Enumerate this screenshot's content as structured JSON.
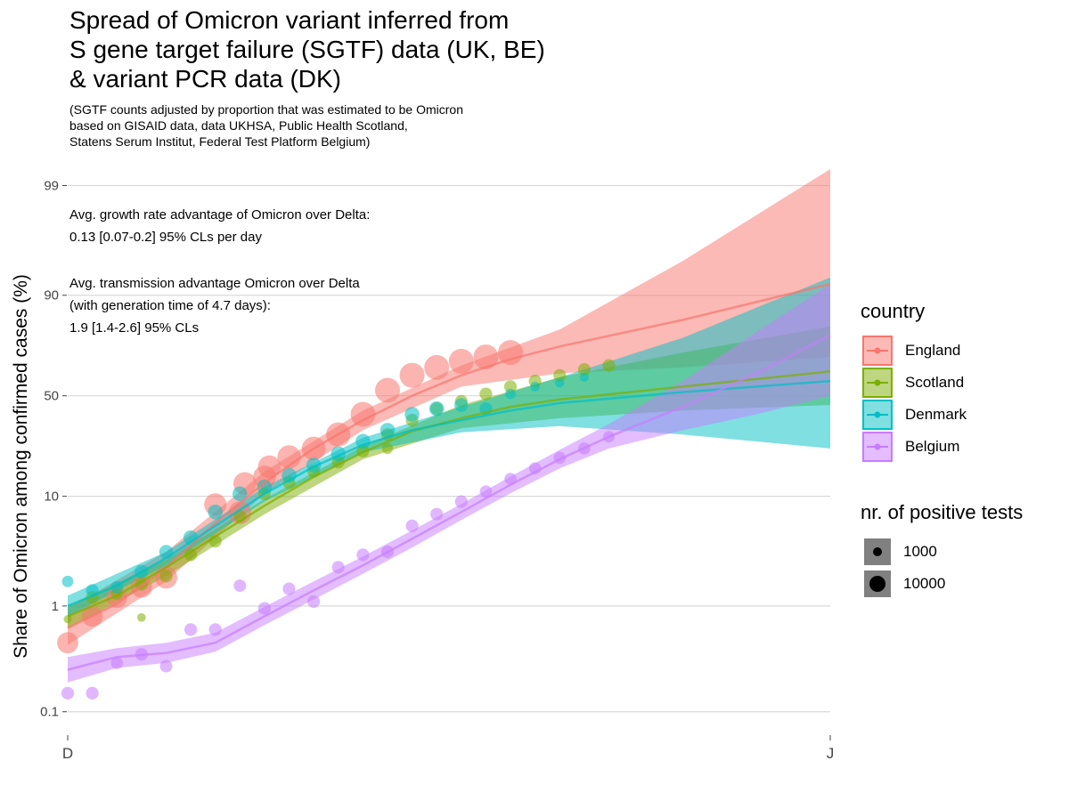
{
  "title_lines": [
    "Spread of Omicron variant inferred from",
    "S gene target failure (SGTF) data (UK, BE)",
    "& variant PCR data (DK)"
  ],
  "subtitle_lines": [
    "(SGTF counts adjusted by proportion that was estimated to be Omicron",
    "based on GISAID data, data UKHSA, Public Health Scotland,",
    "Statens Serum Institut, Federal Test Platform Belgium)"
  ],
  "annotations": {
    "growth_lines": [
      "Avg. growth rate advantage of Omicron over Delta:",
      "0.13 [0.07-0.2] 95% CLs per day"
    ],
    "transmission_lines": [
      "Avg. transmission advantage Omicron over Delta",
      "(with generation time of 4.7 days):",
      "1.9 [1.4-2.6] 95% CLs"
    ]
  },
  "legend": {
    "country_title": "country",
    "size_title": "nr. of positive tests",
    "size_items": [
      {
        "label": "1000",
        "value": 1000
      },
      {
        "label": "10000",
        "value": 10000
      }
    ]
  },
  "chart_data": {
    "type": "scatter",
    "description_type": "logit-scale scatter with fitted lines and confidence bands",
    "ylabel": "Share of Omicron among confirmed cases (%)",
    "xlabel": "",
    "y_scale": "logit",
    "y_ticks": [
      0.1,
      1,
      10,
      50,
      90,
      99
    ],
    "y_tick_labels": [
      "0.1",
      "1",
      "10",
      "50",
      "90",
      "99"
    ],
    "x_ticks": [
      "D",
      "J"
    ],
    "x_tick_days": [
      0,
      31
    ],
    "ylim": [
      0.06,
      99.3
    ],
    "xlim": [
      0,
      31
    ],
    "grid": true,
    "legend_position": "right",
    "series": [
      {
        "name": "England",
        "color": "#F8766D",
        "points": [
          [
            0,
            0.45,
            14000
          ],
          [
            1,
            0.8,
            13000
          ],
          [
            2,
            1.2,
            13000
          ],
          [
            3,
            1.5,
            14000
          ],
          [
            4,
            1.85,
            16000
          ],
          [
            6,
            8.5,
            16000
          ],
          [
            7,
            7.2,
            17000
          ],
          [
            7.2,
            12.8,
            17000
          ],
          [
            8,
            14.5,
            17000
          ],
          [
            8.2,
            17.5,
            17000
          ],
          [
            9,
            20.8,
            18000
          ],
          [
            10,
            24,
            19000
          ],
          [
            11,
            30,
            20000
          ],
          [
            12,
            40,
            21000
          ],
          [
            13,
            53,
            22000
          ],
          [
            14,
            61,
            22000
          ],
          [
            15,
            65,
            23000
          ],
          [
            16,
            68,
            24000
          ],
          [
            17,
            70,
            25000
          ],
          [
            18,
            72,
            25000
          ]
        ],
        "fit": [
          [
            0,
            0.62
          ],
          [
            2,
            1.05
          ],
          [
            4,
            2.3
          ],
          [
            6,
            5.8
          ],
          [
            8,
            13
          ],
          [
            10,
            24
          ],
          [
            12,
            37
          ],
          [
            14,
            50
          ],
          [
            16,
            61
          ],
          [
            18,
            69
          ],
          [
            20,
            74.6
          ],
          [
            25,
            84
          ],
          [
            31,
            92
          ]
        ],
        "ci_upper": [
          [
            0,
            0.95
          ],
          [
            4,
            3.2
          ],
          [
            8,
            16
          ],
          [
            12,
            42
          ],
          [
            16,
            66
          ],
          [
            20,
            81
          ],
          [
            25,
            95
          ],
          [
            31,
            99.3
          ]
        ],
        "ci_lower": [
          [
            0,
            0.43
          ],
          [
            4,
            1.7
          ],
          [
            8,
            10.5
          ],
          [
            12,
            32
          ],
          [
            16,
            55
          ],
          [
            20,
            62
          ],
          [
            25,
            65
          ],
          [
            31,
            70
          ]
        ]
      },
      {
        "name": "Scotland",
        "color": "#7CAE00",
        "points": [
          [
            0,
            0.75,
            400
          ],
          [
            1,
            1.2,
            3000
          ],
          [
            2,
            1.3,
            2000
          ],
          [
            3,
            1.6,
            3000
          ],
          [
            3,
            0.78,
            600
          ],
          [
            4,
            1.9,
            3000
          ],
          [
            5,
            3.0,
            3000
          ],
          [
            6,
            4.0,
            3000
          ],
          [
            7,
            6.7,
            3000
          ],
          [
            8,
            10.5,
            3000
          ],
          [
            9,
            13,
            3000
          ],
          [
            10,
            16,
            3000
          ],
          [
            11,
            19,
            3000
          ],
          [
            12,
            23,
            3000
          ],
          [
            13,
            30,
            3000
          ],
          [
            14,
            37,
            3000
          ],
          [
            15,
            43,
            3000
          ],
          [
            16,
            47,
            3000
          ],
          [
            17,
            51,
            3000
          ],
          [
            18,
            55,
            3000
          ],
          [
            19,
            58,
            3000
          ],
          [
            20,
            61,
            3000
          ],
          [
            21,
            64,
            3000
          ],
          [
            22,
            66,
            3000
          ],
          [
            13,
            24,
            1800
          ]
        ],
        "fit": [
          [
            0,
            0.8
          ],
          [
            2,
            1.25
          ],
          [
            4,
            2.3
          ],
          [
            6,
            4.4
          ],
          [
            8,
            8.3
          ],
          [
            10,
            14.5
          ],
          [
            12,
            22.5
          ],
          [
            14,
            31.5
          ],
          [
            16,
            38
          ],
          [
            18,
            44
          ],
          [
            20,
            48
          ],
          [
            25,
            55
          ],
          [
            31,
            63
          ]
        ],
        "ci_upper": [
          [
            0,
            1.0
          ],
          [
            4,
            2.7
          ],
          [
            8,
            9.5
          ],
          [
            12,
            25
          ],
          [
            16,
            45
          ],
          [
            20,
            60
          ],
          [
            25,
            72
          ],
          [
            31,
            82
          ]
        ],
        "ci_lower": [
          [
            0,
            0.62
          ],
          [
            4,
            1.9
          ],
          [
            8,
            7.0
          ],
          [
            12,
            20
          ],
          [
            16,
            33
          ],
          [
            20,
            38
          ],
          [
            25,
            42
          ],
          [
            31,
            45
          ]
        ]
      },
      {
        "name": "Denmark",
        "color": "#00BFC4",
        "points": [
          [
            0,
            1.7,
            2000
          ],
          [
            1,
            1.4,
            3000
          ],
          [
            2,
            1.5,
            3000
          ],
          [
            3,
            2.1,
            4000
          ],
          [
            4,
            3.2,
            4000
          ],
          [
            5,
            4.3,
            5000
          ],
          [
            6,
            7.3,
            5000
          ],
          [
            7,
            10.5,
            5000
          ],
          [
            8,
            12,
            5000
          ],
          [
            9,
            15,
            5000
          ],
          [
            10,
            18,
            5000
          ],
          [
            11,
            22,
            5000
          ],
          [
            12,
            27,
            5000
          ],
          [
            13,
            32,
            5000
          ],
          [
            14,
            40,
            5000
          ],
          [
            15,
            43,
            5000
          ],
          [
            16,
            45,
            4000
          ],
          [
            17,
            43,
            3000
          ],
          [
            18,
            51,
            1500
          ],
          [
            19,
            55,
            1000
          ],
          [
            20,
            57,
            800
          ],
          [
            21,
            60,
            800
          ]
        ],
        "fit": [
          [
            0,
            1.0
          ],
          [
            2,
            1.55
          ],
          [
            4,
            2.8
          ],
          [
            6,
            5.5
          ],
          [
            8,
            10.5
          ],
          [
            10,
            17.5
          ],
          [
            12,
            25.5
          ],
          [
            14,
            32
          ],
          [
            16,
            37
          ],
          [
            18,
            42
          ],
          [
            20,
            46
          ],
          [
            25,
            52
          ],
          [
            31,
            58
          ]
        ],
        "ci_upper": [
          [
            0,
            1.25
          ],
          [
            4,
            3.2
          ],
          [
            8,
            12
          ],
          [
            12,
            28.5
          ],
          [
            16,
            44
          ],
          [
            20,
            60
          ],
          [
            25,
            78
          ],
          [
            31,
            93
          ]
        ],
        "ci_lower": [
          [
            0,
            0.8
          ],
          [
            4,
            2.4
          ],
          [
            8,
            9.0
          ],
          [
            12,
            22.5
          ],
          [
            16,
            31
          ],
          [
            20,
            34
          ],
          [
            25,
            30
          ],
          [
            31,
            24
          ]
        ]
      },
      {
        "name": "Belgium",
        "color": "#C77CFF",
        "points": [
          [
            0,
            0.15,
            3000
          ],
          [
            1,
            0.15,
            3000
          ],
          [
            2,
            0.29,
            2500
          ],
          [
            3,
            0.35,
            3000
          ],
          [
            4,
            0.27,
            2800
          ],
          [
            5,
            0.6,
            3000
          ],
          [
            6,
            0.6,
            3000
          ],
          [
            7,
            1.55,
            2800
          ],
          [
            8,
            0.95,
            3000
          ],
          [
            9,
            1.45,
            3000
          ],
          [
            10,
            1.1,
            3000
          ],
          [
            11,
            2.3,
            3000
          ],
          [
            12,
            3.0,
            3000
          ],
          [
            13,
            3.2,
            3000
          ],
          [
            14,
            5.5,
            3000
          ],
          [
            15,
            7.0,
            3000
          ],
          [
            16,
            9.0,
            3000
          ],
          [
            17,
            11,
            2500
          ],
          [
            18,
            14,
            2500
          ],
          [
            19,
            17,
            2500
          ],
          [
            20,
            20.5,
            2500
          ],
          [
            21,
            24,
            2500
          ],
          [
            22,
            29,
            2000
          ]
        ],
        "fit": [
          [
            0,
            0.25
          ],
          [
            2,
            0.33
          ],
          [
            4,
            0.36
          ],
          [
            6,
            0.45
          ],
          [
            8,
            0.8
          ],
          [
            10,
            1.4
          ],
          [
            12,
            2.4
          ],
          [
            14,
            4.2
          ],
          [
            16,
            7.3
          ],
          [
            18,
            12.5
          ],
          [
            20,
            20
          ],
          [
            22,
            29
          ],
          [
            25,
            44
          ],
          [
            28,
            62
          ],
          [
            31,
            79
          ]
        ],
        "ci_upper": [
          [
            0,
            0.33
          ],
          [
            2,
            0.4
          ],
          [
            4,
            0.45
          ],
          [
            6,
            0.56
          ],
          [
            8,
            0.98
          ],
          [
            10,
            1.7
          ],
          [
            12,
            2.9
          ],
          [
            14,
            5.0
          ],
          [
            16,
            8.6
          ],
          [
            18,
            14.6
          ],
          [
            20,
            23.5
          ],
          [
            22,
            35
          ],
          [
            25,
            58
          ],
          [
            28,
            80
          ],
          [
            31,
            92
          ]
        ],
        "ci_lower": [
          [
            0,
            0.19
          ],
          [
            2,
            0.26
          ],
          [
            4,
            0.29
          ],
          [
            6,
            0.37
          ],
          [
            8,
            0.66
          ],
          [
            10,
            1.15
          ],
          [
            12,
            2.0
          ],
          [
            14,
            3.5
          ],
          [
            16,
            6.2
          ],
          [
            18,
            10.6
          ],
          [
            20,
            17
          ],
          [
            22,
            24
          ],
          [
            25,
            32
          ],
          [
            28,
            40
          ],
          [
            31,
            50
          ]
        ]
      }
    ]
  }
}
